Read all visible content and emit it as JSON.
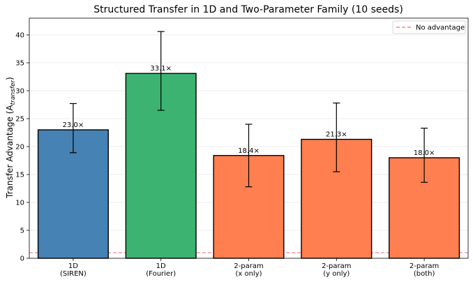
{
  "chart_data": {
    "type": "bar",
    "title": "Structured Transfer in 1D and Two-Parameter Family (10 seeds)",
    "ylabel_main": "Transfer Advantage (A",
    "ylabel_sub": "transfer",
    "ylabel_end": ")",
    "ylim": [
      0,
      43
    ],
    "yticks": [
      0,
      5,
      10,
      15,
      20,
      25,
      30,
      35,
      40
    ],
    "grid": "horizontal",
    "categories": [
      {
        "line1": "1D",
        "line2": "(SIREN)"
      },
      {
        "line1": "1D",
        "line2": "(Fourier)"
      },
      {
        "line1": "2-param",
        "line2": "(x only)"
      },
      {
        "line1": "2-param",
        "line2": "(y only)"
      },
      {
        "line1": "2-param",
        "line2": "(both)"
      }
    ],
    "values": [
      23.0,
      33.1,
      18.4,
      21.3,
      18.0
    ],
    "error_low": [
      18.9,
      26.5,
      12.8,
      15.5,
      13.6
    ],
    "error_high": [
      27.7,
      40.6,
      24.0,
      27.8,
      23.3
    ],
    "data_labels": [
      "23.0×",
      "33.1×",
      "18.4×",
      "21.3×",
      "18.0×"
    ],
    "colors": [
      "#4682b4",
      "#3cb371",
      "#ff7f50",
      "#ff7f50",
      "#ff7f50"
    ],
    "reference_line": {
      "value": 1,
      "label": "No advantage",
      "color": "#ff6b6b"
    },
    "legend_position": "top-right"
  }
}
